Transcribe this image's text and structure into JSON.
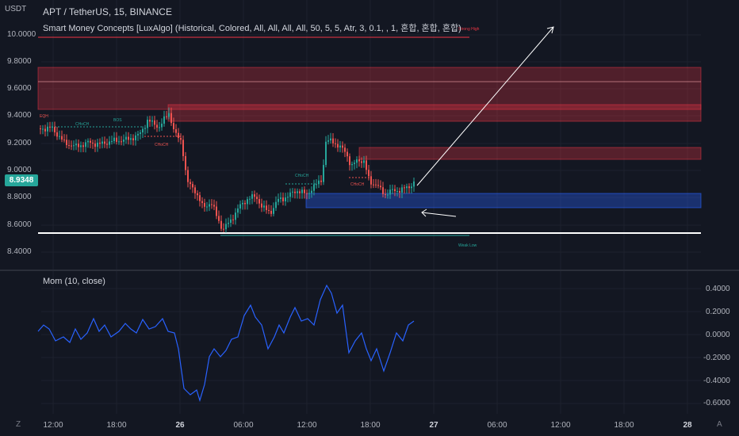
{
  "header": {
    "currency": "USDT",
    "title": "APT / TetherUS, 15, BINANCE",
    "indicator": "Smart Money Concepts [LuxAlgo] (Historical, Colored, All, All, All, All, 50, 5, 5, Atr, 3, 0.1, , 1, 혼합, 혼합, 혼합)"
  },
  "price_axis": {
    "labels": [
      "10.0000",
      "9.8000",
      "9.6000",
      "9.4000",
      "9.2000",
      "9.0000",
      "8.8000",
      "8.6000",
      "8.4000"
    ],
    "last_price": "8.9348"
  },
  "mom_panel": {
    "title": "Mom (10, close)",
    "labels": [
      "0.4000",
      "0.2000",
      "0.0000",
      "-0.2000",
      "-0.4000",
      "-0.6000"
    ]
  },
  "time_axis": {
    "labels": [
      "12:00",
      "18:00",
      "26",
      "06:00",
      "12:00",
      "18:00",
      "27",
      "06:00",
      "12:00",
      "18:00",
      "28"
    ]
  },
  "annotations": {
    "strong_high": "Strong High",
    "weak_low": "Weak Low",
    "eqh": "EQH",
    "bos": "BOS",
    "choch_labels": [
      "CHoCH",
      "CHoCH",
      "CHoCH",
      "CHoCH"
    ]
  },
  "footer": {
    "left": "Z",
    "right": "A"
  },
  "colors": {
    "up": "#26a69a",
    "down": "#ef5350",
    "mom": "#2962ff",
    "supply": "#f23645",
    "demand": "#2962ff"
  }
}
